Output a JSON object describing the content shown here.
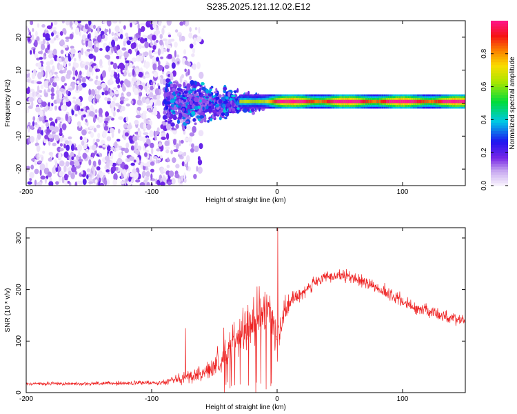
{
  "title": "S235.2025.121.12.02.E12",
  "colors": {
    "snr_line": "#ee2222",
    "spectrum_low": "#e6d8f7",
    "spectrum_mid": "#7a2be0",
    "axis": "#000000"
  },
  "chart_data": [
    {
      "type": "heatmap",
      "name": "spectrogram",
      "xlabel": "Height of straight line (km)",
      "ylabel": "Frequency (Hz)",
      "xlim": [
        -200,
        150
      ],
      "ylim": [
        -25,
        25
      ],
      "xticks": [
        -200,
        -100,
        0,
        100
      ],
      "yticks": [
        -20,
        -10,
        0,
        10,
        20
      ],
      "colorbar": {
        "label": "Normalized spectral amplitude",
        "range": [
          0.0,
          1.0
        ],
        "ticks": [
          0.0,
          0.2,
          0.4,
          0.6,
          0.8
        ]
      },
      "features": [
        {
          "region": "noise",
          "x_from": -200,
          "x_to": -90,
          "freq_spread": 25
        },
        {
          "region": "transition",
          "x_from": -90,
          "x_to": -30,
          "freq_spread": 10
        },
        {
          "region": "carrier",
          "x_from": -30,
          "x_to": 150,
          "freq_center": 0.5,
          "peak_amplitude": 1.0
        }
      ]
    },
    {
      "type": "line",
      "name": "snr",
      "xlabel": "Height of straight line (km)",
      "ylabel": "SNR (10 * v/v)",
      "xlim": [
        -200,
        150
      ],
      "ylim": [
        0,
        320
      ],
      "xticks": [
        -200,
        -100,
        0,
        100
      ],
      "yticks": [
        0,
        100,
        200,
        300
      ],
      "envelope": {
        "x": [
          -200,
          -120,
          -90,
          -80,
          -60,
          -45,
          -35,
          -25,
          -15,
          -5,
          0,
          10,
          25,
          40,
          55,
          70,
          90,
          110,
          130,
          150
        ],
        "y": [
          17,
          18,
          20,
          28,
          35,
          60,
          95,
          120,
          140,
          160,
          120,
          175,
          205,
          225,
          225,
          215,
          190,
          165,
          150,
          140
        ],
        "noise": [
          5,
          6,
          7,
          15,
          25,
          35,
          45,
          50,
          55,
          60,
          70,
          25,
          20,
          18,
          18,
          18,
          18,
          18,
          18,
          18
        ]
      },
      "spikes": [
        {
          "x": -73,
          "y": 125
        },
        {
          "x": 0.5,
          "y": 320
        }
      ]
    }
  ]
}
